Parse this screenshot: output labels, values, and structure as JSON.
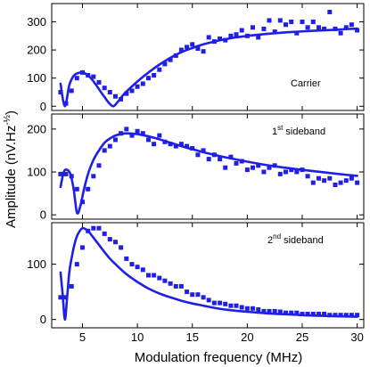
{
  "chart_data": [
    {
      "type": "scatter",
      "label": "Carrier",
      "xlim": [
        2.2,
        30.6
      ],
      "ylim": [
        -15,
        365
      ],
      "yticks": [
        0,
        100,
        200,
        300
      ],
      "marker_color": "#1f1fe6",
      "series": [
        {
          "kind": "measured",
          "x": [
            3,
            3.5,
            4,
            4.5,
            5,
            5.5,
            6,
            6.5,
            7,
            7.5,
            8,
            8.5,
            9,
            9.5,
            10,
            10.5,
            11,
            11.5,
            12,
            12.5,
            13,
            13.5,
            14,
            14.5,
            15,
            15.5,
            16,
            16.5,
            17,
            17.5,
            18,
            18.5,
            19,
            19.5,
            20,
            20.5,
            21,
            21.5,
            22,
            22.5,
            23,
            23.5,
            24,
            24.5,
            25,
            25.5,
            26,
            26.5,
            27,
            27.5,
            28,
            28.5,
            29,
            29.5,
            30
          ],
          "y": [
            50,
            10,
            55,
            100,
            120,
            110,
            105,
            85,
            65,
            50,
            35,
            25,
            45,
            55,
            70,
            80,
            100,
            110,
            130,
            150,
            165,
            180,
            200,
            210,
            220,
            205,
            195,
            245,
            230,
            240,
            235,
            250,
            255,
            270,
            250,
            280,
            245,
            275,
            305,
            265,
            305,
            290,
            300,
            260,
            300,
            280,
            300,
            280,
            275,
            335,
            275,
            260,
            280,
            290,
            270
          ]
        },
        {
          "kind": "fit",
          "x": [
            3,
            3.4,
            3.8,
            4.2,
            4.6,
            5,
            5.4,
            5.8,
            6.2,
            6.6,
            7,
            7.4,
            7.8,
            8.2,
            8.6,
            9,
            10,
            11,
            12,
            13,
            14,
            15,
            16,
            17,
            18,
            19,
            20,
            22,
            24,
            26,
            28,
            30
          ],
          "y": [
            80,
            0,
            75,
            108,
            118,
            120,
            113,
            98,
            78,
            55,
            33,
            12,
            0,
            15,
            35,
            52,
            88,
            120,
            148,
            172,
            192,
            207,
            220,
            230,
            238,
            245,
            250,
            258,
            264,
            268,
            272,
            276
          ]
        }
      ]
    },
    {
      "type": "scatter",
      "label": "1st sideband",
      "xlim": [
        2.2,
        30.6
      ],
      "ylim": [
        -10,
        235
      ],
      "yticks": [
        0,
        100,
        200
      ],
      "marker_color": "#1f1fe6",
      "series": [
        {
          "kind": "measured",
          "x": [
            3,
            3.5,
            4,
            4.5,
            5,
            5.5,
            6,
            6.5,
            7,
            7.5,
            8,
            8.5,
            9,
            9.5,
            10,
            10.5,
            11,
            11.5,
            12,
            12.5,
            13,
            13.5,
            14,
            14.5,
            15,
            15.5,
            16,
            16.5,
            17,
            17.5,
            18,
            18.5,
            19,
            19.5,
            20,
            20.5,
            21,
            21.5,
            22,
            22.5,
            23,
            23.5,
            24,
            24.5,
            25,
            25.5,
            26,
            26.5,
            27,
            27.5,
            28,
            28.5,
            29,
            29.5,
            30
          ],
          "y": [
            95,
            95,
            90,
            60,
            30,
            60,
            90,
            115,
            150,
            160,
            175,
            190,
            200,
            185,
            195,
            190,
            175,
            165,
            185,
            170,
            165,
            160,
            165,
            160,
            155,
            140,
            150,
            130,
            140,
            130,
            110,
            135,
            120,
            125,
            105,
            110,
            115,
            100,
            110,
            115,
            95,
            100,
            105,
            100,
            105,
            90,
            75,
            85,
            80,
            85,
            70,
            75,
            80,
            85,
            75
          ]
        },
        {
          "kind": "fit",
          "x": [
            3,
            3.3,
            3.6,
            3.9,
            4.2,
            4.5,
            4.8,
            5.1,
            5.5,
            6,
            6.5,
            7,
            7.5,
            8,
            8.5,
            9,
            10,
            11,
            12,
            13,
            14,
            15,
            16,
            17,
            18,
            20,
            22,
            24,
            26,
            28,
            30
          ],
          "y": [
            65,
            100,
            105,
            95,
            60,
            5,
            20,
            55,
            95,
            128,
            150,
            168,
            178,
            185,
            188,
            190,
            188,
            183,
            176,
            168,
            160,
            153,
            146,
            140,
            134,
            124,
            115,
            108,
            102,
            96,
            91
          ]
        }
      ]
    },
    {
      "type": "scatter",
      "label": "2nd sideband",
      "xlim": [
        2.2,
        30.6
      ],
      "ylim": [
        -15,
        175
      ],
      "yticks": [
        0,
        100
      ],
      "marker_color": "#1f1fe6",
      "series": [
        {
          "kind": "measured",
          "x": [
            3,
            3.5,
            4,
            4.5,
            5,
            5.5,
            6,
            6.5,
            7,
            7.5,
            8,
            8.5,
            9,
            9.5,
            10,
            10.5,
            11,
            11.5,
            12,
            12.5,
            13,
            13.5,
            14,
            14.5,
            15,
            15.5,
            16,
            16.5,
            17,
            17.5,
            18,
            18.5,
            19,
            19.5,
            20,
            20.5,
            21,
            21.5,
            22,
            22.5,
            23,
            23.5,
            24,
            24.5,
            25,
            25.5,
            26,
            26.5,
            27,
            27.5,
            28,
            28.5,
            29,
            29.5,
            30
          ],
          "y": [
            40,
            40,
            60,
            100,
            130,
            160,
            165,
            165,
            155,
            145,
            140,
            130,
            110,
            100,
            95,
            90,
            80,
            80,
            75,
            70,
            65,
            60,
            60,
            50,
            45,
            45,
            40,
            35,
            30,
            30,
            28,
            25,
            25,
            22,
            20,
            20,
            18,
            15,
            15,
            15,
            14,
            12,
            12,
            12,
            10,
            10,
            10,
            10,
            10,
            8,
            8,
            8,
            8,
            8,
            8
          ]
        },
        {
          "kind": "fit",
          "x": [
            3,
            3.2,
            3.4,
            3.6,
            3.8,
            4,
            4.3,
            4.6,
            5,
            5.5,
            6,
            6.5,
            7,
            7.5,
            8,
            9,
            10,
            11,
            12,
            13,
            14,
            15,
            16,
            17,
            18,
            20,
            22,
            24,
            26,
            28,
            30
          ],
          "y": [
            85,
            45,
            0,
            40,
            85,
            110,
            138,
            155,
            165,
            160,
            148,
            135,
            122,
            110,
            100,
            82,
            68,
            56,
            47,
            40,
            34,
            29,
            25,
            21,
            18,
            14,
            11,
            9,
            7,
            6,
            5
          ]
        }
      ]
    }
  ],
  "labels": {
    "carrier": "Carrier",
    "sideband1_num": "1",
    "sideband1_sup": "st",
    "sideband1_word": " sideband",
    "sideband2_num": "2",
    "sideband2_sup": "nd",
    "sideband2_word": " sideband",
    "ylabel": "Amplitude (nV.Hz",
    "ylabel_sup": "-½",
    "ylabel_end": ")",
    "xlabel": "Modulation frequency (MHz)"
  },
  "xticks": [
    5,
    10,
    15,
    20,
    25,
    30
  ]
}
